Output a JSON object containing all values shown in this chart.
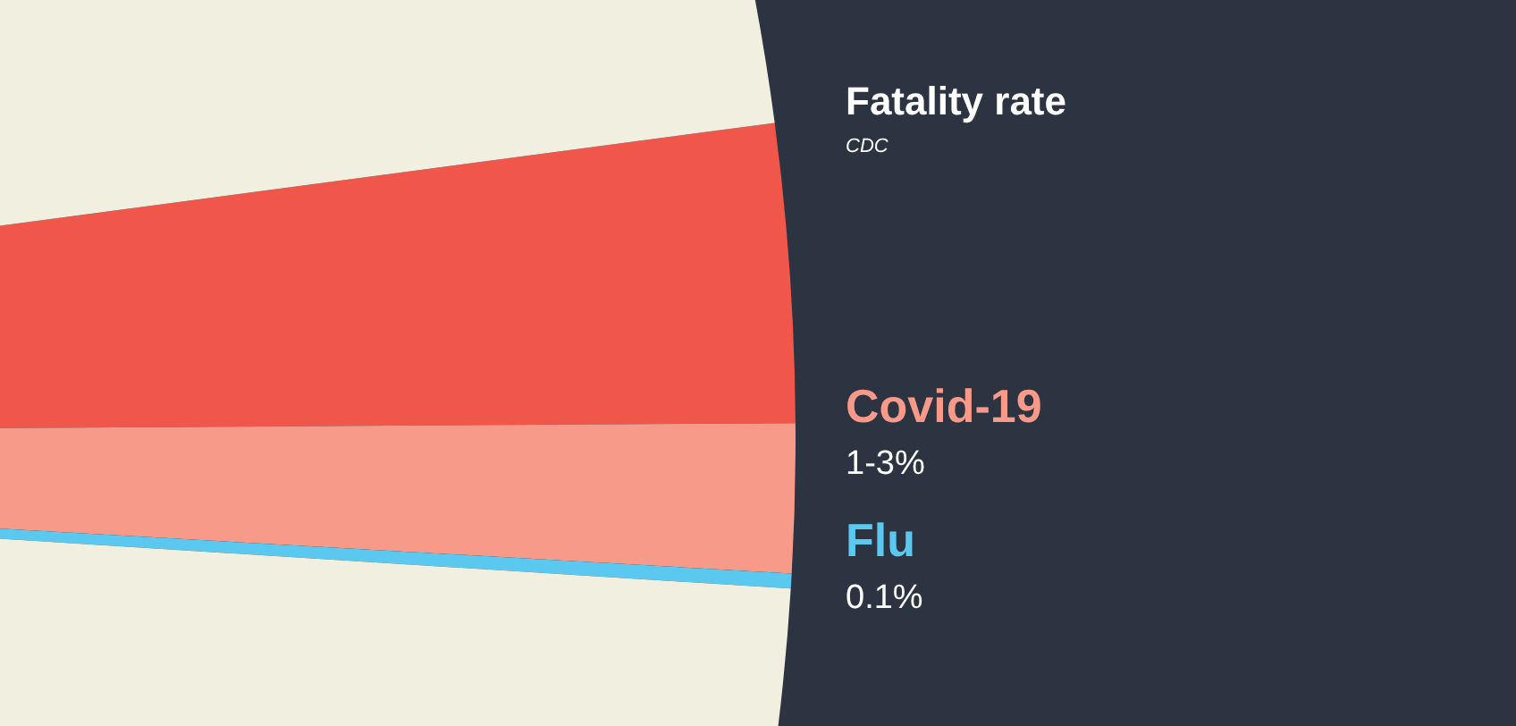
{
  "chart_data": {
    "type": "pie",
    "title": "Fatality rate",
    "subtitle": "CDC",
    "categories": [
      null,
      "Covid-19",
      "Flu",
      null
    ],
    "values": [
      2,
      1,
      0.1,
      96.9
    ],
    "colors": [
      "#f0564a",
      "#f79a8a",
      "#5bc8f0",
      "#f0efe0"
    ],
    "value_labels": [
      null,
      "1-3%",
      "0.1%",
      null
    ]
  }
}
